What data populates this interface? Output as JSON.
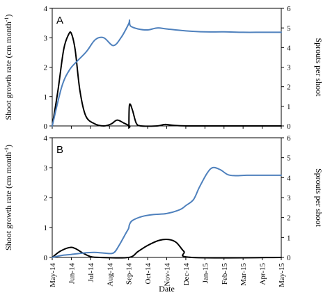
{
  "chart_data": {
    "type": "line",
    "xlabel": "Date",
    "categories": [
      "May-14",
      "Jun-14",
      "Jul-14",
      "Aug-14",
      "Sep-14",
      "Oct-14",
      "Nov-14",
      "Dec-14",
      "Jan-15",
      "Feb-15",
      "Mar-15",
      "Apr-15",
      "May-15"
    ],
    "panels": [
      {
        "label": "A",
        "left_axis": {
          "label": "Shoot growth rate (cm month-1)",
          "ylim": [
            0,
            4
          ],
          "ticks": [
            0,
            1,
            2,
            3,
            4
          ]
        },
        "right_axis": {
          "label": "Sprouts per shoot",
          "ylim": [
            0,
            6
          ],
          "ticks": [
            0,
            1,
            2,
            3,
            4,
            5,
            6
          ]
        },
        "series": [
          {
            "axis": "left",
            "color": "#000000",
            "points": [
              [
                0,
                0
              ],
              [
                0.3,
                1.2
              ],
              [
                0.6,
                2.6
              ],
              [
                0.85,
                3.1
              ],
              [
                1.0,
                3.15
              ],
              [
                1.2,
                2.6
              ],
              [
                1.45,
                1.2
              ],
              [
                1.75,
                0.35
              ],
              [
                2.2,
                0.08
              ],
              [
                2.7,
                0.0
              ],
              [
                3.1,
                0.07
              ],
              [
                3.4,
                0.2
              ],
              [
                3.75,
                0.1
              ],
              [
                4.05,
                0.0
              ],
              [
                4.02,
                0.0
              ],
              [
                4.05,
                0.72
              ],
              [
                4.2,
                0.55
              ],
              [
                4.4,
                0.1
              ],
              [
                4.65,
                0.0
              ],
              [
                5.5,
                0.0
              ],
              [
                5.9,
                0.05
              ],
              [
                6.4,
                0.02
              ],
              [
                7.5,
                0.0
              ],
              [
                12,
                0.0
              ]
            ]
          },
          {
            "axis": "right",
            "color": "#4f81bd",
            "points": [
              [
                0,
                0
              ],
              [
                0.5,
                2.0
              ],
              [
                0.9,
                2.85
              ],
              [
                1.3,
                3.3
              ],
              [
                1.8,
                3.8
              ],
              [
                2.25,
                4.4
              ],
              [
                2.7,
                4.5
              ],
              [
                3.2,
                4.1
              ],
              [
                3.6,
                4.5
              ],
              [
                4.0,
                5.2
              ],
              [
                4.05,
                5.4
              ],
              [
                4.1,
                5.1
              ],
              [
                4.5,
                4.95
              ],
              [
                5.0,
                4.9
              ],
              [
                5.5,
                5.0
              ],
              [
                6.0,
                4.95
              ],
              [
                7.0,
                4.85
              ],
              [
                8.0,
                4.8
              ],
              [
                9.0,
                4.8
              ],
              [
                10.0,
                4.78
              ],
              [
                11.0,
                4.78
              ],
              [
                12.0,
                4.78
              ]
            ]
          }
        ]
      },
      {
        "label": "B",
        "left_axis": {
          "label": "Shoot growth rate (cm month-1)",
          "ylim": [
            0,
            4
          ],
          "ticks": [
            0,
            1,
            2,
            3,
            4
          ]
        },
        "right_axis": {
          "label": "Sprouts per shoot",
          "ylim": [
            0,
            6
          ],
          "ticks": [
            0,
            1,
            2,
            3,
            4,
            5,
            6
          ]
        },
        "series": [
          {
            "axis": "left",
            "color": "#000000",
            "points": [
              [
                0,
                0
              ],
              [
                0.4,
                0.2
              ],
              [
                0.9,
                0.33
              ],
              [
                1.2,
                0.3
              ],
              [
                1.6,
                0.15
              ],
              [
                2.0,
                0.03
              ],
              [
                2.5,
                0.0
              ],
              [
                4.0,
                0.0
              ],
              [
                4.5,
                0.2
              ],
              [
                5.0,
                0.4
              ],
              [
                5.6,
                0.57
              ],
              [
                6.1,
                0.6
              ],
              [
                6.5,
                0.5
              ],
              [
                6.9,
                0.2
              ],
              [
                7.3,
                0.0
              ],
              [
                12,
                0.0
              ]
            ]
          },
          {
            "axis": "right",
            "color": "#4f81bd",
            "points": [
              [
                0,
                0
              ],
              [
                0.5,
                0.1
              ],
              [
                1.0,
                0.15
              ],
              [
                1.6,
                0.22
              ],
              [
                2.2,
                0.25
              ],
              [
                2.7,
                0.22
              ],
              [
                3.2,
                0.22
              ],
              [
                3.5,
                0.6
              ],
              [
                3.85,
                1.2
              ],
              [
                4.0,
                1.45
              ],
              [
                4.05,
                1.65
              ],
              [
                4.2,
                1.85
              ],
              [
                4.7,
                2.05
              ],
              [
                5.3,
                2.15
              ],
              [
                6.0,
                2.2
              ],
              [
                6.7,
                2.4
              ],
              [
                7.0,
                2.6
              ],
              [
                7.4,
                2.9
              ],
              [
                7.7,
                3.5
              ],
              [
                8.1,
                4.2
              ],
              [
                8.4,
                4.5
              ],
              [
                8.8,
                4.4
              ],
              [
                9.2,
                4.15
              ],
              [
                9.6,
                4.1
              ],
              [
                10.2,
                4.12
              ],
              [
                11.0,
                4.12
              ],
              [
                12.0,
                4.12
              ]
            ]
          }
        ]
      }
    ]
  }
}
